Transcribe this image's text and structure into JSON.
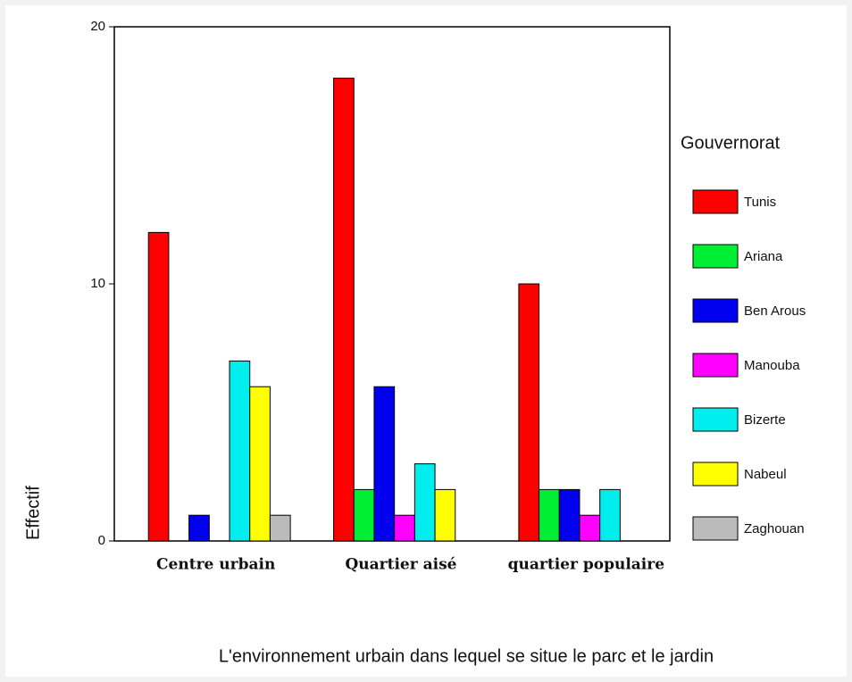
{
  "chart_data": {
    "type": "bar",
    "categories": [
      "Centre urbain",
      "Quartier aisé",
      "quartier populaire"
    ],
    "series": [
      {
        "name": "Tunis",
        "color": "#ff0000",
        "values": [
          12,
          18,
          10
        ]
      },
      {
        "name": "Ariana",
        "color": "#00ee33",
        "values": [
          0,
          2,
          2
        ]
      },
      {
        "name": "Ben Arous",
        "color": "#0000ee",
        "values": [
          1,
          6,
          2
        ]
      },
      {
        "name": "Manouba",
        "color": "#ff00ff",
        "values": [
          0,
          1,
          1
        ]
      },
      {
        "name": "Bizerte",
        "color": "#00eeee",
        "values": [
          7,
          3,
          2
        ]
      },
      {
        "name": "Nabeul",
        "color": "#ffff00",
        "values": [
          6,
          2,
          0
        ]
      },
      {
        "name": "Zaghouan",
        "color": "#bbbbbb",
        "values": [
          1,
          0,
          0
        ]
      }
    ],
    "ylim": [
      0,
      20
    ],
    "yticks": [
      0,
      10,
      20
    ],
    "ylabel": "Effectif",
    "xlabel": "L'environnement urbain dans lequel se situe le parc et le jardin",
    "legend_title": "Gouvernorat",
    "legend": "right"
  }
}
